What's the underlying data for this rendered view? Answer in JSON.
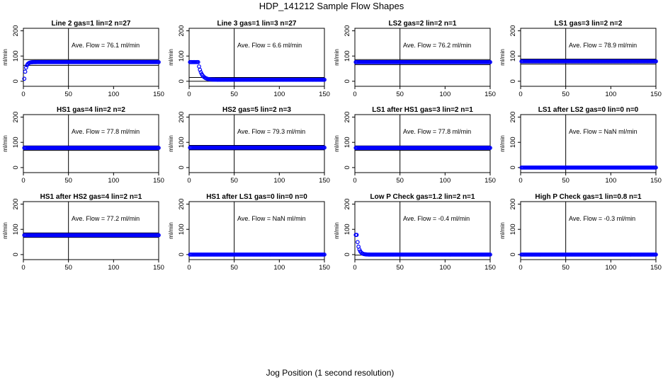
{
  "figure": {
    "title": "HDP_141212  Sample Flow Shapes",
    "xlabel": "Jog Position (1 second resolution)"
  },
  "style": {
    "point_color": "#0000ff",
    "line_color": "#000000"
  },
  "chart_data": [
    {
      "type": "scatter",
      "title": "Line 2 gas=1 lin=2 n=27",
      "ylabel": "ml/min",
      "xlim": [
        0,
        150
      ],
      "ylim": [
        -20,
        210
      ],
      "x_ticks": [
        0,
        50,
        100,
        150
      ],
      "y_ticks": [
        0,
        100,
        200
      ],
      "vline_x": 50,
      "hlines_y": [
        63,
        86
      ],
      "annotation": "Ave. Flow = 76.1  ml/min",
      "series": [
        {
          "name": "flow",
          "shape": "rise",
          "level": 76,
          "start": 10,
          "tau": 1.8,
          "x_start": 1,
          "x_end": 150
        }
      ]
    },
    {
      "type": "scatter",
      "title": "Line 3 gas=1 lin=3 n=27",
      "ylabel": "ml/min",
      "xlim": [
        0,
        150
      ],
      "ylim": [
        -20,
        210
      ],
      "x_ticks": [
        0,
        50,
        100,
        150
      ],
      "y_ticks": [
        0,
        100,
        200
      ],
      "vline_x": 50,
      "hlines_y": [
        0,
        15
      ],
      "annotation": "Ave. Flow = 6.6  ml/min",
      "series": [
        {
          "name": "flow",
          "shape": "fall",
          "level": 6,
          "start": 76,
          "t0": 10,
          "tau": 3.5,
          "x_start": 1,
          "x_end": 150
        }
      ]
    },
    {
      "type": "scatter",
      "title": "LS2 gas=2 lin=2 n=1",
      "ylabel": "ml/min",
      "xlim": [
        0,
        150
      ],
      "ylim": [
        -20,
        210
      ],
      "x_ticks": [
        0,
        50,
        100,
        150
      ],
      "y_ticks": [
        0,
        100,
        200
      ],
      "vline_x": 50,
      "hlines_y": [
        66,
        86
      ],
      "annotation": "Ave. Flow = 76.2  ml/min",
      "series": [
        {
          "name": "flow",
          "shape": "flat",
          "level": 76,
          "x_start": 1,
          "x_end": 150
        }
      ]
    },
    {
      "type": "scatter",
      "title": "LS1 gas=3 lin=2 n=2",
      "ylabel": "ml/min",
      "xlim": [
        0,
        150
      ],
      "ylim": [
        -20,
        210
      ],
      "x_ticks": [
        0,
        50,
        100,
        150
      ],
      "y_ticks": [
        0,
        100,
        200
      ],
      "vline_x": 50,
      "hlines_y": [
        68,
        88
      ],
      "annotation": "Ave. Flow = 78.9  ml/min",
      "series": [
        {
          "name": "flow",
          "shape": "flat",
          "level": 79,
          "x_start": 1,
          "x_end": 150
        }
      ]
    },
    {
      "type": "scatter",
      "title": "HS1 gas=4 lin=2 n=2",
      "ylabel": "ml/min",
      "xlim": [
        0,
        150
      ],
      "ylim": [
        -20,
        210
      ],
      "x_ticks": [
        0,
        50,
        100,
        150
      ],
      "y_ticks": [
        0,
        100,
        200
      ],
      "vline_x": 50,
      "hlines_y": [
        68,
        86
      ],
      "annotation": "Ave. Flow = 77.8  ml/min",
      "series": [
        {
          "name": "flow",
          "shape": "flat",
          "level": 78,
          "x_start": 1,
          "x_end": 150
        }
      ]
    },
    {
      "type": "scatter",
      "title": "HS2 gas=5 lin=2 n=3",
      "ylabel": "ml/min",
      "xlim": [
        0,
        150
      ],
      "ylim": [
        -20,
        210
      ],
      "x_ticks": [
        0,
        50,
        100,
        150
      ],
      "y_ticks": [
        0,
        100,
        200
      ],
      "vline_x": 50,
      "hlines_y": [
        70,
        88
      ],
      "annotation": "Ave. Flow = 79.3  ml/min",
      "series": [
        {
          "name": "flow",
          "shape": "flat",
          "level": 79,
          "x_start": 1,
          "x_end": 150
        }
      ]
    },
    {
      "type": "scatter",
      "title": "LS1 after HS1 gas=3 lin=2 n=1",
      "ylabel": "ml/min",
      "xlim": [
        0,
        150
      ],
      "ylim": [
        -20,
        210
      ],
      "x_ticks": [
        0,
        50,
        100,
        150
      ],
      "y_ticks": [
        0,
        100,
        200
      ],
      "vline_x": 50,
      "hlines_y": [
        68,
        86
      ],
      "annotation": "Ave. Flow = 77.8  ml/min",
      "series": [
        {
          "name": "flow",
          "shape": "flat",
          "level": 78,
          "x_start": 1,
          "x_end": 150
        }
      ]
    },
    {
      "type": "scatter",
      "title": "LS1 after LS2 gas=0 lin=0 n=0",
      "ylabel": "ml/min",
      "xlim": [
        0,
        150
      ],
      "ylim": [
        -20,
        210
      ],
      "x_ticks": [
        0,
        50,
        100,
        150
      ],
      "y_ticks": [
        0,
        100,
        200
      ],
      "vline_x": 50,
      "hlines_y": [],
      "annotation": "Ave. Flow =  NaN  ml/min",
      "series": [
        {
          "name": "flow",
          "shape": "flat",
          "level": 0,
          "x_start": 1,
          "x_end": 150
        }
      ]
    },
    {
      "type": "scatter",
      "title": "HS1 after HS2 gas=4 lin=2 n=1",
      "ylabel": "ml/min",
      "xlim": [
        0,
        150
      ],
      "ylim": [
        -20,
        210
      ],
      "x_ticks": [
        0,
        50,
        100,
        150
      ],
      "y_ticks": [
        0,
        100,
        200
      ],
      "vline_x": 50,
      "hlines_y": [
        68,
        86
      ],
      "annotation": "Ave. Flow = 77.2  ml/min",
      "series": [
        {
          "name": "flow",
          "shape": "flat",
          "level": 77,
          "x_start": 1,
          "x_end": 150
        }
      ]
    },
    {
      "type": "scatter",
      "title": "HS1 after LS1 gas=0 lin=0 n=0",
      "ylabel": "ml/min",
      "xlim": [
        0,
        150
      ],
      "ylim": [
        -20,
        210
      ],
      "x_ticks": [
        0,
        50,
        100,
        150
      ],
      "y_ticks": [
        0,
        100,
        200
      ],
      "vline_x": 50,
      "hlines_y": [],
      "annotation": "Ave. Flow =  NaN  ml/min",
      "series": [
        {
          "name": "flow",
          "shape": "flat",
          "level": 0,
          "x_start": 1,
          "x_end": 150
        }
      ]
    },
    {
      "type": "scatter",
      "title": "Low P Check gas=1.2 lin=2 n=1",
      "ylabel": "ml/min",
      "xlim": [
        0,
        150
      ],
      "ylim": [
        -20,
        210
      ],
      "x_ticks": [
        0,
        50,
        100,
        150
      ],
      "y_ticks": [
        0,
        100,
        200
      ],
      "vline_x": 50,
      "hlines_y": [
        -2
      ],
      "annotation": "Ave. Flow = -0.4  ml/min",
      "series": [
        {
          "name": "flow",
          "shape": "fall",
          "level": 0,
          "start": 78,
          "t0": 2,
          "tau": 2.2,
          "x_start": 1,
          "x_end": 150
        }
      ]
    },
    {
      "type": "scatter",
      "title": "High P Check gas=1 lin=0.8 n=1",
      "ylabel": "ml/min",
      "xlim": [
        0,
        150
      ],
      "ylim": [
        -20,
        210
      ],
      "x_ticks": [
        0,
        50,
        100,
        150
      ],
      "y_ticks": [
        0,
        100,
        200
      ],
      "vline_x": 50,
      "hlines_y": [
        -2
      ],
      "annotation": "Ave. Flow = -0.3  ml/min",
      "series": [
        {
          "name": "flow",
          "shape": "flat",
          "level": 0,
          "x_start": 1,
          "x_end": 150
        }
      ]
    }
  ]
}
